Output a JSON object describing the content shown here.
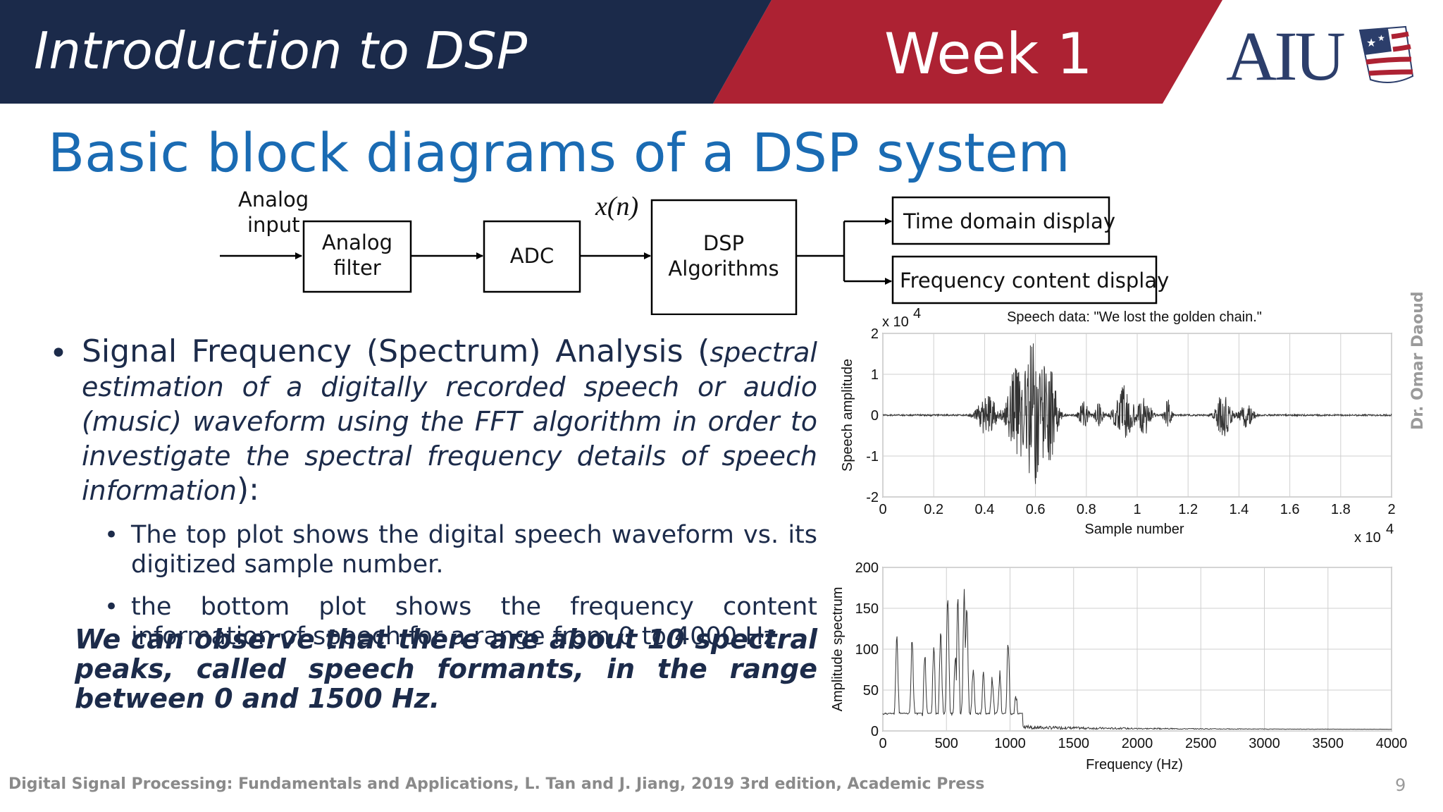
{
  "header": {
    "course_title": "Introduction to DSP",
    "week_label": "Week 1",
    "logo_text": "AIU",
    "colors": {
      "navy": "#1b2a4a",
      "red": "#ad2233",
      "logo_text": "#2c3e6b"
    }
  },
  "slide": {
    "title": "Basic block diagrams of a DSP system",
    "title_color": "#1a6bb3"
  },
  "block_diagram": {
    "input_label_line1": "Analog",
    "input_label_line2": "input",
    "blocks": [
      {
        "line1": "Analog",
        "line2": "filter"
      },
      {
        "line1": "ADC",
        "line2": ""
      },
      {
        "line1": "DSP",
        "line2": "Algorithms"
      }
    ],
    "signal_label": "x(n)",
    "outputs": [
      "Time domain display",
      "Frequency content display"
    ]
  },
  "bullets": {
    "main_start": "Signal Frequency (Spectrum) Analysis (",
    "main_italic": "spectral estimation of a digitally recorded speech or audio (music) waveform using the FFT algorithm in order to investigate the spectral frequency details of speech information",
    "main_end": "):",
    "sub": [
      "The top plot shows the digital speech waveform vs. its digitized sample number.",
      "the bottom plot shows the frequency content information of speech for a range from 0 to 4000 Hz."
    ]
  },
  "conclusion": "We can observe that there are about 10 spectral peaks, called speech formants, in the range between 0 and 1500 Hz.",
  "chart_data": [
    {
      "type": "line",
      "title": "Speech data: \"We lost the golden chain.\"",
      "xlabel": "Sample number",
      "ylabel": "Speech amplitude",
      "x_scale_label": "x 10",
      "x_scale_exp": "4",
      "y_scale_label": "x 10",
      "y_scale_exp": "4",
      "xlim": [
        0,
        2
      ],
      "ylim": [
        -2,
        2
      ],
      "xticks": [
        "0",
        "0.2",
        "0.4",
        "0.6",
        "0.8",
        "1",
        "1.2",
        "1.4",
        "1.6",
        "1.8",
        "2"
      ],
      "yticks": [
        "-2",
        "-1",
        "0",
        "1",
        "2"
      ],
      "grid": true,
      "bursts": [
        {
          "center": 0.41,
          "width": 0.055,
          "amp": 0.55
        },
        {
          "center": 0.52,
          "width": 0.045,
          "amp": 1.0
        },
        {
          "center": 0.595,
          "width": 0.08,
          "amp": 1.8
        },
        {
          "center": 0.665,
          "width": 0.035,
          "amp": 0.7
        },
        {
          "center": 0.79,
          "width": 0.03,
          "amp": 0.35
        },
        {
          "center": 0.85,
          "width": 0.02,
          "amp": 0.35
        },
        {
          "center": 0.95,
          "width": 0.055,
          "amp": 0.75
        },
        {
          "center": 1.03,
          "width": 0.035,
          "amp": 0.5
        },
        {
          "center": 1.12,
          "width": 0.02,
          "amp": 0.4
        },
        {
          "center": 1.34,
          "width": 0.04,
          "amp": 0.65
        },
        {
          "center": 1.43,
          "width": 0.04,
          "amp": 0.3
        }
      ]
    },
    {
      "type": "line",
      "title": "",
      "xlabel": "Frequency (Hz)",
      "ylabel": "Amplitude spectrum",
      "xlim": [
        0,
        4000
      ],
      "ylim": [
        0,
        200
      ],
      "xticks": [
        "0",
        "500",
        "1000",
        "1500",
        "2000",
        "2500",
        "3000",
        "3500",
        "4000"
      ],
      "yticks": [
        "0",
        "50",
        "100",
        "150",
        "200"
      ],
      "grid": true,
      "peaks": [
        {
          "x": 110,
          "y": 100
        },
        {
          "x": 230,
          "y": 95
        },
        {
          "x": 330,
          "y": 80
        },
        {
          "x": 400,
          "y": 88
        },
        {
          "x": 455,
          "y": 110
        },
        {
          "x": 510,
          "y": 150
        },
        {
          "x": 570,
          "y": 75
        },
        {
          "x": 590,
          "y": 145
        },
        {
          "x": 640,
          "y": 155
        },
        {
          "x": 660,
          "y": 140
        },
        {
          "x": 710,
          "y": 62
        },
        {
          "x": 790,
          "y": 55
        },
        {
          "x": 860,
          "y": 50
        },
        {
          "x": 920,
          "y": 55
        },
        {
          "x": 985,
          "y": 95
        },
        {
          "x": 1045,
          "y": 30
        },
        {
          "x": 1150,
          "y": 12
        }
      ]
    }
  ],
  "footer": {
    "reference": "Digital Signal Processing: Fundamentals and Applications, L. Tan and J. Jiang, 2019 3rd edition, Academic Press",
    "page_number": "9",
    "author": "Dr. Omar Daoud"
  }
}
